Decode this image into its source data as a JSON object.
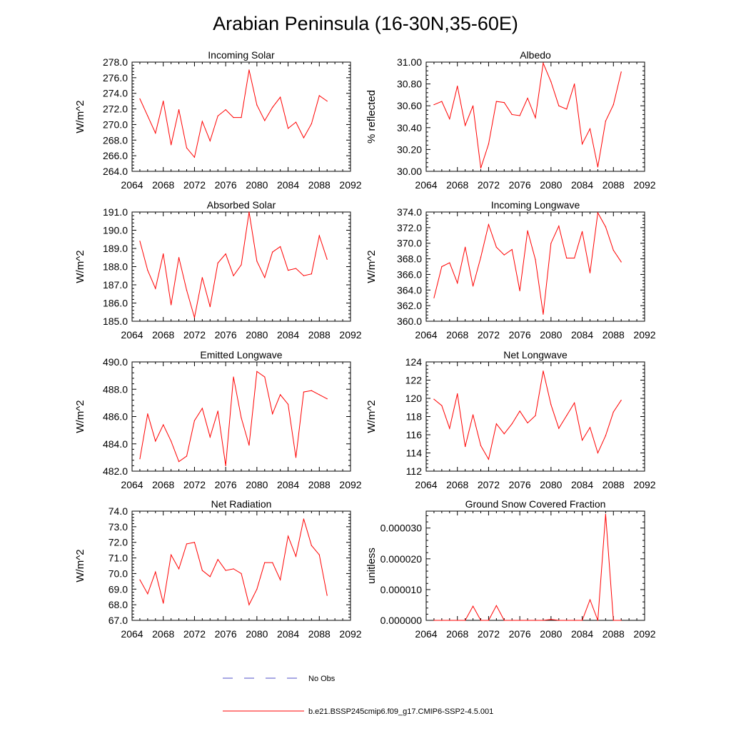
{
  "figure": {
    "title": "Arabian Peninsula (16-30N,35-60E)",
    "legend": [
      {
        "label": "No Obs",
        "color": "#5050c8",
        "style": "dashed"
      },
      {
        "label": "b.e21.BSSP245cmip6.f09_g17.CMIP6-SSP2-4.5.001",
        "color": "#ff0000",
        "style": "solid"
      }
    ]
  },
  "chart_data": [
    {
      "type": "line",
      "title": "Incoming Solar",
      "ylabel": "W/m^2",
      "xlim": [
        2064,
        2092
      ],
      "ylim": [
        264,
        278
      ],
      "xticks": [
        "2064",
        "2068",
        "2072",
        "2076",
        "2080",
        "2084",
        "2088",
        "2092"
      ],
      "yticks": [
        "264.0",
        "266.0",
        "268.0",
        "270.0",
        "272.0",
        "274.0",
        "276.0",
        "278.0"
      ],
      "x": [
        2065,
        2066,
        2067,
        2068,
        2069,
        2070,
        2071,
        2072,
        2073,
        2074,
        2075,
        2076,
        2077,
        2078,
        2079,
        2080,
        2081,
        2082,
        2083,
        2084,
        2085,
        2086,
        2087,
        2088,
        2089
      ],
      "series": [
        {
          "color": "#ff0000",
          "values": [
            273.3,
            271.1,
            268.9,
            273.0,
            267.4,
            271.9,
            267.0,
            265.8,
            270.4,
            267.9,
            271.1,
            271.9,
            270.9,
            270.9,
            277.0,
            272.5,
            270.5,
            272.2,
            273.5,
            269.5,
            270.3,
            268.3,
            270.1,
            273.7,
            273.0
          ]
        }
      ]
    },
    {
      "type": "line",
      "title": "Albedo",
      "ylabel": "% reflected",
      "xlim": [
        2064,
        2092
      ],
      "ylim": [
        30.0,
        31.0
      ],
      "xticks": [
        "2064",
        "2068",
        "2072",
        "2076",
        "2080",
        "2084",
        "2088",
        "2092"
      ],
      "yticks": [
        "30.00",
        "30.20",
        "30.40",
        "30.60",
        "30.80",
        "31.00"
      ],
      "x": [
        2065,
        2066,
        2067,
        2068,
        2069,
        2070,
        2071,
        2072,
        2073,
        2074,
        2075,
        2076,
        2077,
        2078,
        2079,
        2080,
        2081,
        2082,
        2083,
        2084,
        2085,
        2086,
        2087,
        2088,
        2089
      ],
      "series": [
        {
          "color": "#ff0000",
          "values": [
            30.61,
            30.64,
            30.48,
            30.78,
            30.42,
            30.6,
            30.03,
            30.25,
            30.64,
            30.63,
            30.52,
            30.51,
            30.67,
            30.49,
            30.99,
            30.82,
            30.6,
            30.57,
            30.8,
            30.25,
            30.39,
            30.04,
            30.46,
            30.61,
            30.91
          ]
        }
      ]
    },
    {
      "type": "line",
      "title": "Absorbed Solar",
      "ylabel": "W/m^2",
      "xlim": [
        2064,
        2092
      ],
      "ylim": [
        185,
        191
      ],
      "xticks": [
        "2064",
        "2068",
        "2072",
        "2076",
        "2080",
        "2084",
        "2088",
        "2092"
      ],
      "yticks": [
        "185.0",
        "186.0",
        "187.0",
        "188.0",
        "189.0",
        "190.0",
        "191.0"
      ],
      "x": [
        2065,
        2066,
        2067,
        2068,
        2069,
        2070,
        2071,
        2072,
        2073,
        2074,
        2075,
        2076,
        2077,
        2078,
        2079,
        2080,
        2081,
        2082,
        2083,
        2084,
        2085,
        2086,
        2087,
        2088,
        2089
      ],
      "series": [
        {
          "color": "#ff0000",
          "values": [
            189.4,
            187.8,
            186.8,
            188.7,
            185.9,
            188.5,
            186.7,
            185.2,
            187.4,
            185.8,
            188.2,
            188.7,
            187.5,
            188.1,
            191.0,
            188.3,
            187.4,
            188.8,
            189.1,
            187.8,
            187.9,
            187.5,
            187.6,
            189.7,
            188.4
          ]
        }
      ]
    },
    {
      "type": "line",
      "title": "Incoming Longwave",
      "ylabel": "W/m^2",
      "xlim": [
        2064,
        2092
      ],
      "ylim": [
        360,
        374
      ],
      "xticks": [
        "2064",
        "2068",
        "2072",
        "2076",
        "2080",
        "2084",
        "2088",
        "2092"
      ],
      "yticks": [
        "360.0",
        "362.0",
        "364.0",
        "366.0",
        "368.0",
        "370.0",
        "372.0",
        "374.0"
      ],
      "x": [
        2065,
        2066,
        2067,
        2068,
        2069,
        2070,
        2071,
        2072,
        2073,
        2074,
        2075,
        2076,
        2077,
        2078,
        2079,
        2080,
        2081,
        2082,
        2083,
        2084,
        2085,
        2086,
        2087,
        2088,
        2089
      ],
      "series": [
        {
          "color": "#ff0000",
          "values": [
            363.0,
            367.0,
            367.5,
            364.9,
            369.5,
            364.5,
            368.2,
            372.4,
            369.5,
            368.5,
            369.2,
            363.9,
            371.6,
            367.9,
            360.9,
            370.0,
            372.2,
            368.1,
            368.1,
            371.5,
            366.2,
            373.9,
            372.1,
            369.1,
            367.6
          ]
        }
      ]
    },
    {
      "type": "line",
      "title": "Emitted Longwave",
      "ylabel": "W/m^2",
      "xlim": [
        2064,
        2092
      ],
      "ylim": [
        482,
        490
      ],
      "xticks": [
        "2064",
        "2068",
        "2072",
        "2076",
        "2080",
        "2084",
        "2088",
        "2092"
      ],
      "yticks": [
        "482.0",
        "484.0",
        "486.0",
        "488.0",
        "490.0"
      ],
      "x": [
        2065,
        2066,
        2067,
        2068,
        2069,
        2070,
        2071,
        2072,
        2073,
        2074,
        2075,
        2076,
        2077,
        2078,
        2079,
        2080,
        2081,
        2082,
        2083,
        2084,
        2085,
        2086,
        2087,
        2088,
        2089
      ],
      "series": [
        {
          "color": "#ff0000",
          "values": [
            482.9,
            486.2,
            484.2,
            485.4,
            484.2,
            482.7,
            483.1,
            485.7,
            486.6,
            484.5,
            486.4,
            482.4,
            488.9,
            485.9,
            483.9,
            489.3,
            488.9,
            486.2,
            487.6,
            486.9,
            483.0,
            487.8,
            487.9,
            487.6,
            487.3
          ]
        }
      ]
    },
    {
      "type": "line",
      "title": "Net Longwave",
      "ylabel": "W/m^2",
      "xlim": [
        2064,
        2092
      ],
      "ylim": [
        112,
        124
      ],
      "xticks": [
        "2064",
        "2068",
        "2072",
        "2076",
        "2080",
        "2084",
        "2088",
        "2092"
      ],
      "yticks": [
        "112",
        "114",
        "116",
        "118",
        "120",
        "122",
        "124"
      ],
      "x": [
        2065,
        2066,
        2067,
        2068,
        2069,
        2070,
        2071,
        2072,
        2073,
        2074,
        2075,
        2076,
        2077,
        2078,
        2079,
        2080,
        2081,
        2082,
        2083,
        2084,
        2085,
        2086,
        2087,
        2088,
        2089
      ],
      "series": [
        {
          "color": "#ff0000",
          "values": [
            119.9,
            119.2,
            116.7,
            120.5,
            114.7,
            118.2,
            114.8,
            113.3,
            117.2,
            116.1,
            117.2,
            118.6,
            117.3,
            118.1,
            123.0,
            119.3,
            116.7,
            118.1,
            119.5,
            115.4,
            116.8,
            114.0,
            115.9,
            118.5,
            119.8
          ]
        }
      ]
    },
    {
      "type": "line",
      "title": "Net Radiation",
      "ylabel": "W/m^2",
      "xlim": [
        2064,
        2092
      ],
      "ylim": [
        67,
        74
      ],
      "xticks": [
        "2064",
        "2068",
        "2072",
        "2076",
        "2080",
        "2084",
        "2088",
        "2092"
      ],
      "yticks": [
        "67.0",
        "68.0",
        "69.0",
        "70.0",
        "71.0",
        "72.0",
        "73.0",
        "74.0"
      ],
      "x": [
        2065,
        2066,
        2067,
        2068,
        2069,
        2070,
        2071,
        2072,
        2073,
        2074,
        2075,
        2076,
        2077,
        2078,
        2079,
        2080,
        2081,
        2082,
        2083,
        2084,
        2085,
        2086,
        2087,
        2088,
        2089
      ],
      "series": [
        {
          "color": "#ff0000",
          "values": [
            69.6,
            68.7,
            70.1,
            68.1,
            71.2,
            70.3,
            71.9,
            72.0,
            70.2,
            69.8,
            70.9,
            70.2,
            70.3,
            70.0,
            68.0,
            69.0,
            70.7,
            70.7,
            69.6,
            72.4,
            71.1,
            73.5,
            71.8,
            71.2,
            68.6
          ]
        }
      ]
    },
    {
      "type": "line",
      "title": "Ground Snow Covered Fraction",
      "ylabel": "unitless",
      "xlim": [
        2064,
        2092
      ],
      "ylim": [
        0,
        3.55e-05
      ],
      "xticks": [
        "2064",
        "2068",
        "2072",
        "2076",
        "2080",
        "2084",
        "2088",
        "2092"
      ],
      "ytick_values": [
        0,
        1e-05,
        2e-05,
        3e-05
      ],
      "yticks": [
        "0.000000",
        "0.000010",
        "0.000020",
        "0.000030"
      ],
      "x": [
        2065,
        2066,
        2067,
        2068,
        2069,
        2070,
        2071,
        2072,
        2073,
        2074,
        2075,
        2076,
        2077,
        2078,
        2079,
        2080,
        2081,
        2082,
        2083,
        2084,
        2085,
        2086,
        2087,
        2088,
        2089
      ],
      "series": [
        {
          "color": "#ff0000",
          "values": [
            0,
            0,
            0,
            0,
            0,
            4.6e-06,
            0,
            0,
            4.8e-06,
            0,
            0,
            0,
            0,
            0,
            0,
            3e-07,
            0,
            0,
            0,
            0,
            6.7e-06,
            0,
            3.45e-05,
            0,
            0
          ]
        }
      ]
    }
  ]
}
